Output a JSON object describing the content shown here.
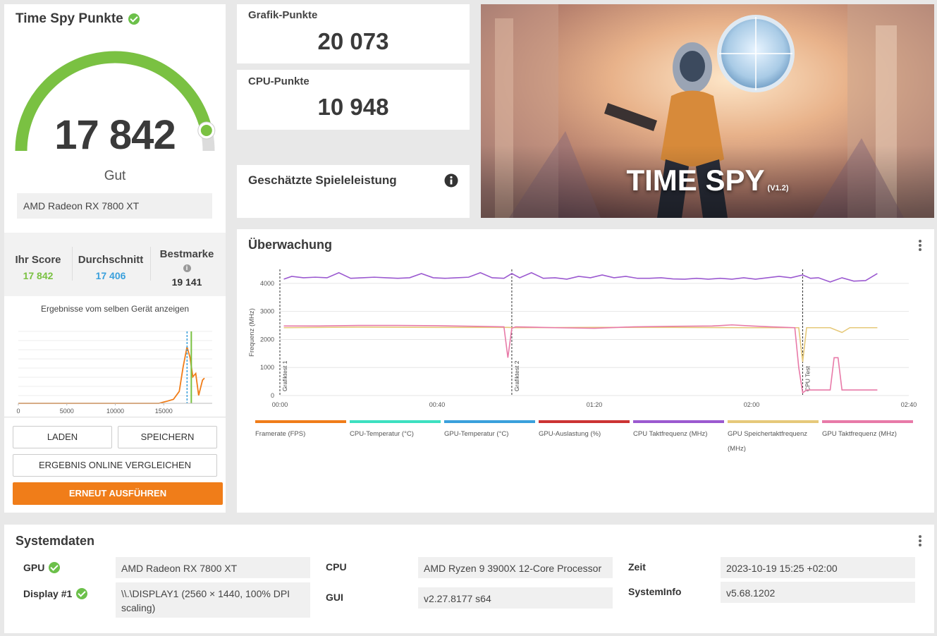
{
  "score_card": {
    "title": "Time Spy Punkte",
    "score": "17 842",
    "rating": "Gut",
    "gpu_name": "AMD Radeon RX 7800 XT",
    "your_score_label": "Ihr Score",
    "your_score": "17 842",
    "average_label": "Durchschnitt",
    "average": "17 406",
    "best_label": "Bestmarke",
    "best": "19 141",
    "results_label": "Ergebnisse vom selben Gerät anzeigen",
    "gauge_fraction": 0.93,
    "colors": {
      "score_green": "#7ac142",
      "average_blue": "#3aa0dc",
      "accent_orange": "#f07d19"
    }
  },
  "histogram": {
    "x_ticks": [
      "0",
      "5000",
      "10000",
      "15000"
    ],
    "x_range": [
      0,
      20000
    ],
    "distribution": [
      [
        0,
        0
      ],
      [
        14500,
        0
      ],
      [
        15300,
        0.03
      ],
      [
        16000,
        0.06
      ],
      [
        16600,
        0.18
      ],
      [
        17000,
        0.55
      ],
      [
        17400,
        0.85
      ],
      [
        17700,
        0.7
      ],
      [
        18000,
        0.4
      ],
      [
        18300,
        0.45
      ],
      [
        18600,
        0.12
      ],
      [
        19000,
        0.35
      ],
      [
        19200,
        0.38
      ]
    ],
    "your_score": 17842,
    "average": 17406
  },
  "buttons": {
    "load": "LADEN",
    "save": "SPEICHERN",
    "compare_online": "ERGEBNIS ONLINE VERGLEICHEN",
    "run_again": "ERNEUT AUSFÜHREN"
  },
  "graphics_card": {
    "label": "Grafik-Punkte",
    "value": "20 073"
  },
  "cpu_card": {
    "label": "CPU-Punkte",
    "value": "10 948"
  },
  "estimate_card": {
    "label": "Geschätzte Spieleleistung"
  },
  "hero": {
    "title": "TIME SPY",
    "version": "(V1.2)"
  },
  "monitoring": {
    "title": "Überwachung",
    "chart_data": {
      "type": "line",
      "ylabel": "Frequenz (MHz)",
      "y_ticks": [
        0,
        1000,
        2000,
        3000,
        4000
      ],
      "ylim": [
        0,
        4500
      ],
      "x_ticks": [
        "00:00",
        "00:40",
        "01:20",
        "02:00",
        "02:40"
      ],
      "xlim_seconds": [
        0,
        160
      ],
      "markers": [
        {
          "label": "Grafiktest 1",
          "t": 0
        },
        {
          "label": "Grafiktest 2",
          "t": 59
        },
        {
          "label": "CPU Test",
          "t": 133
        }
      ],
      "series": [
        {
          "name": "CPU Taktfrequenz (MHz)",
          "color": "#9b59d0",
          "x": [
            1,
            3,
            6,
            9,
            12,
            15,
            18,
            21,
            24,
            27,
            30,
            33,
            36,
            39,
            42,
            45,
            48,
            51,
            54,
            57,
            59,
            61,
            64,
            67,
            70,
            73,
            76,
            79,
            82,
            85,
            88,
            91,
            94,
            97,
            100,
            103,
            106,
            109,
            112,
            115,
            118,
            121,
            124,
            127,
            130,
            133,
            135,
            137,
            140,
            143,
            146,
            149,
            152
          ],
          "values": [
            4150,
            4250,
            4200,
            4220,
            4200,
            4380,
            4180,
            4200,
            4220,
            4200,
            4180,
            4200,
            4350,
            4200,
            4180,
            4200,
            4220,
            4380,
            4200,
            4180,
            4350,
            4200,
            4380,
            4180,
            4200,
            4150,
            4250,
            4200,
            4300,
            4200,
            4250,
            4180,
            4180,
            4200,
            4160,
            4150,
            4180,
            4150,
            4180,
            4150,
            4200,
            4150,
            4200,
            4250,
            4200,
            4300,
            4180,
            4200,
            4050,
            4200,
            4080,
            4100,
            4350
          ]
        },
        {
          "name": "GPU Speichertaktfrequenz (MHz)",
          "color": "#e6c97a",
          "x": [
            1,
            20,
            40,
            58,
            60,
            80,
            100,
            120,
            132,
            133,
            134,
            136,
            140,
            143,
            145,
            150,
            152
          ],
          "values": [
            2420,
            2440,
            2430,
            2430,
            2420,
            2430,
            2430,
            2420,
            2420,
            1200,
            2420,
            2420,
            2420,
            2250,
            2420,
            2420,
            2420
          ]
        },
        {
          "name": "GPU Taktfrequenz (MHz)",
          "color": "#e87aa8",
          "x": [
            1,
            10,
            20,
            30,
            40,
            50,
            57,
            58,
            59,
            60,
            70,
            80,
            90,
            100,
            110,
            115,
            120,
            125,
            131,
            132,
            133,
            134,
            135,
            140,
            141,
            142,
            143,
            144,
            145,
            152
          ],
          "values": [
            2480,
            2480,
            2500,
            2500,
            2490,
            2470,
            2450,
            1350,
            2400,
            2450,
            2420,
            2400,
            2450,
            2470,
            2480,
            2520,
            2480,
            2450,
            2420,
            1000,
            100,
            200,
            200,
            200,
            1350,
            1350,
            200,
            200,
            200,
            200
          ]
        }
      ]
    },
    "legend": [
      {
        "name": "Framerate (FPS)",
        "color": "#f07d19"
      },
      {
        "name": "CPU-Temperatur (°C)",
        "color": "#3de0c0"
      },
      {
        "name": "GPU-Temperatur (°C)",
        "color": "#3aa0dc"
      },
      {
        "name": "GPU-Auslastung (%)",
        "color": "#cc3333"
      },
      {
        "name": "CPU Taktfrequenz (MHz)",
        "color": "#9b59d0"
      },
      {
        "name": "GPU Speichertaktfrequenz (MHz)",
        "color": "#e6c97a"
      },
      {
        "name": "GPU Taktfrequenz (MHz)",
        "color": "#e87aa8"
      }
    ]
  },
  "system": {
    "title": "Systemdaten",
    "gpu_label": "GPU",
    "gpu_value": "AMD Radeon RX 7800 XT",
    "display_label": "Display #1",
    "display_value": "\\\\.\\DISPLAY1 (2560 × 1440, 100% DPI scaling)",
    "cpu_label": "CPU",
    "cpu_value": "AMD Ryzen 9 3900X 12-Core Processor",
    "gui_label": "GUI",
    "gui_value": "v2.27.8177 s64",
    "time_label": "Zeit",
    "time_value": "2023-10-19 15:25 +02:00",
    "sysinfo_label": "SystemInfo",
    "sysinfo_value": "v5.68.1202"
  }
}
